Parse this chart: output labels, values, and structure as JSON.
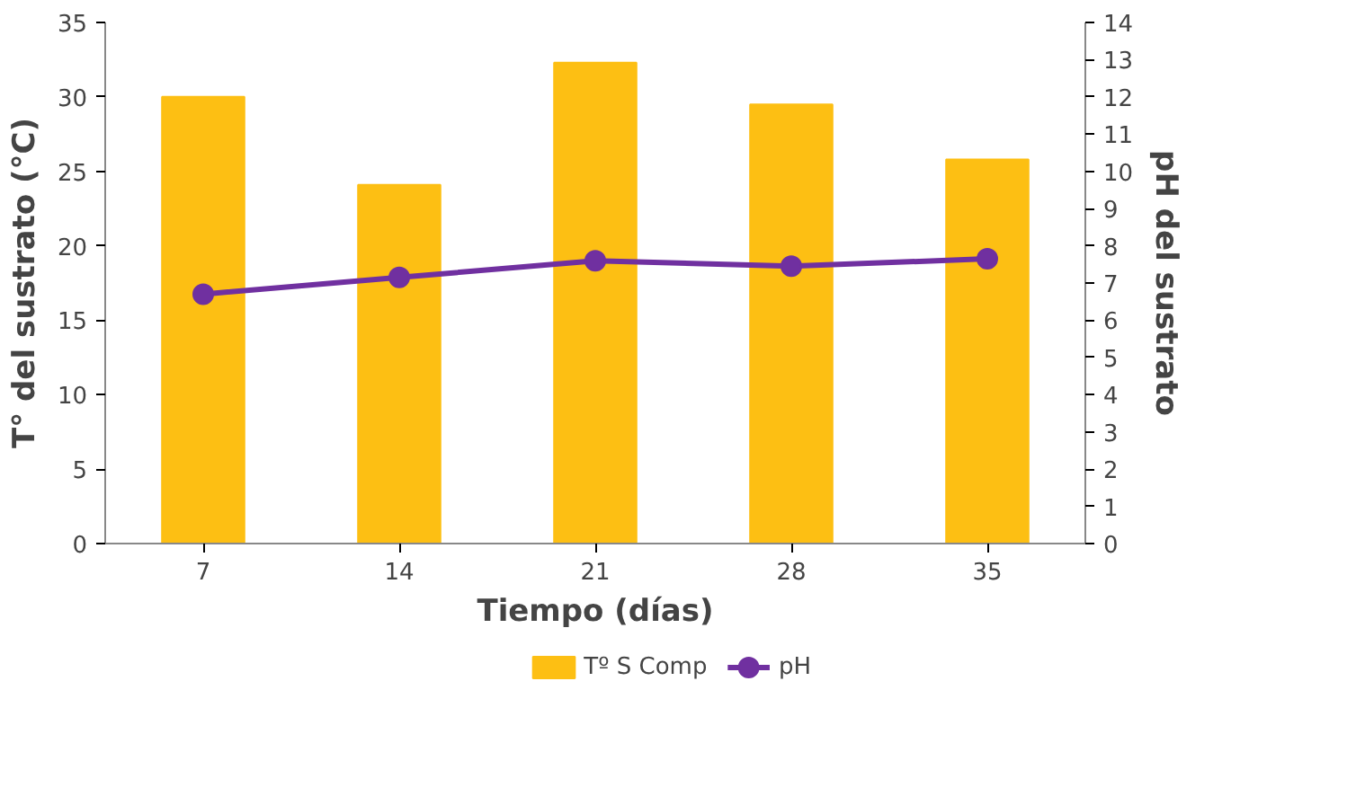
{
  "chart_data": {
    "type": "bar",
    "xlabel": "Tiempo (días)",
    "ylabel": "T° del sustrato (°C)",
    "y2label": "pH del sustrato",
    "categories": [
      "7",
      "14",
      "21",
      "28",
      "35"
    ],
    "series": [
      {
        "name": "Tº S Comp",
        "color": "#fdbf13",
        "values": [
          30,
          24.1,
          32.3,
          29.5,
          25.8
        ]
      },
      {
        "name": "pH",
        "type": "line",
        "axis": "y2",
        "color": "#7030a0",
        "marker": "circle",
        "values": [
          6.7,
          7.15,
          7.6,
          7.45,
          7.65
        ]
      }
    ],
    "ylim": [
      0,
      35
    ],
    "yticks": [
      0,
      5,
      10,
      15,
      20,
      25,
      30,
      35
    ],
    "y2lim": [
      0,
      14
    ],
    "y2ticks": [
      0,
      1,
      2,
      3,
      4,
      5,
      6,
      7,
      8,
      9,
      10,
      11,
      12,
      13,
      14
    ],
    "grid": false,
    "legend": "bottom"
  }
}
